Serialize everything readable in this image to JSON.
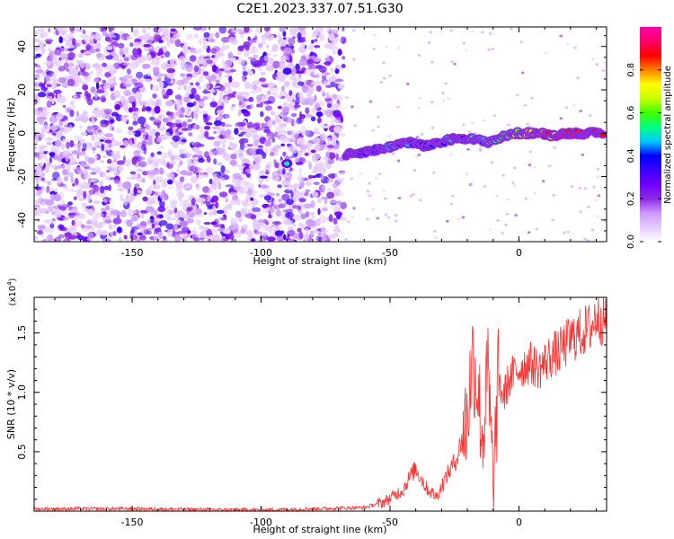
{
  "figure": {
    "title": "C2E1.2023.337.07.51.G30"
  },
  "chart_data": [
    {
      "type": "heatmap",
      "name": "spectrogram",
      "xlabel": "Height of straight line (km)",
      "ylabel": "Frequency (Hz)",
      "xlim": [
        -188,
        34
      ],
      "ylim": [
        -50,
        49
      ],
      "xticks": [
        -150,
        -100,
        -50,
        0
      ],
      "yticks": [
        -40,
        -20,
        0,
        20,
        40
      ],
      "grid": false,
      "colorbar": {
        "label": "Normalized spectral amplitude",
        "range": [
          0,
          1
        ],
        "ticks": [
          "0.0",
          "0.2",
          "0.4",
          "0.6",
          "0.8"
        ],
        "colormap": [
          "#ffffff",
          "#e6ccff",
          "#cc99ff",
          "#8a2be2",
          "#7000ff",
          "#3b00ff",
          "#0000ff",
          "#00c8ff",
          "#00ff80",
          "#40ff00",
          "#c8ff00",
          "#ffff00",
          "#ff8000",
          "#ff0000",
          "#ff0066",
          "#ff00aa"
        ]
      },
      "signal_trace": {
        "x": [
          -67,
          -62,
          -57,
          -52,
          -47,
          -42,
          -37,
          -32,
          -27,
          -22,
          -17,
          -12,
          -7,
          -2,
          3,
          8,
          13,
          18,
          23,
          28,
          33
        ],
        "frequency_hz": [
          -10,
          -9,
          -8,
          -7,
          -5,
          -4,
          -6,
          -5,
          -3,
          -2,
          -3,
          -4,
          -2,
          0,
          0,
          0,
          -1,
          0,
          0,
          0,
          0
        ],
        "normalized_amplitude": [
          0.3,
          0.35,
          0.38,
          0.42,
          0.45,
          0.4,
          0.38,
          0.42,
          0.45,
          0.44,
          0.48,
          0.5,
          0.55,
          0.6,
          0.75,
          0.85,
          0.8,
          0.88,
          0.9,
          0.92,
          0.9
        ]
      },
      "noise_region": {
        "x_range": [
          -188,
          -68
        ],
        "frequency_range": [
          -50,
          49
        ]
      },
      "isolated_blob": {
        "x": -90,
        "frequency_hz": -14
      }
    },
    {
      "type": "line",
      "name": "snr",
      "xlabel": "Height of straight line (km)",
      "ylabel": "SNR (10 * v/v)",
      "y_multiplier": "(x10",
      "y_multiplier_exponent": "4",
      "y_multiplier_close": ")",
      "xlim": [
        -188,
        34
      ],
      "ylim": [
        0,
        1.8
      ],
      "xticks": [
        -150,
        -100,
        -50,
        0
      ],
      "yticks": [
        0.5,
        1.0,
        1.5
      ],
      "ytick_labels": [
        "0.5",
        "1.0",
        "1.5"
      ],
      "grid": false,
      "series": [
        {
          "color": "#ff3030",
          "x": [
            -188,
            -150,
            -100,
            -60,
            -52,
            -45,
            -42,
            -40,
            -36,
            -32,
            -28,
            -24,
            -20,
            -18,
            -16,
            -14,
            -12,
            -10,
            -8,
            -6,
            -4,
            -2,
            0,
            4,
            8,
            12,
            16,
            20,
            24,
            28,
            30,
            34
          ],
          "y": [
            0.02,
            0.02,
            0.01,
            0.03,
            0.08,
            0.18,
            0.3,
            0.36,
            0.2,
            0.12,
            0.3,
            0.45,
            0.8,
            1.3,
            1.05,
            0.6,
            1.2,
            0.15,
            1.1,
            0.95,
            1.1,
            1.15,
            1.2,
            1.25,
            1.2,
            1.3,
            1.35,
            1.45,
            1.5,
            1.55,
            1.65,
            1.6
          ]
        }
      ]
    }
  ]
}
